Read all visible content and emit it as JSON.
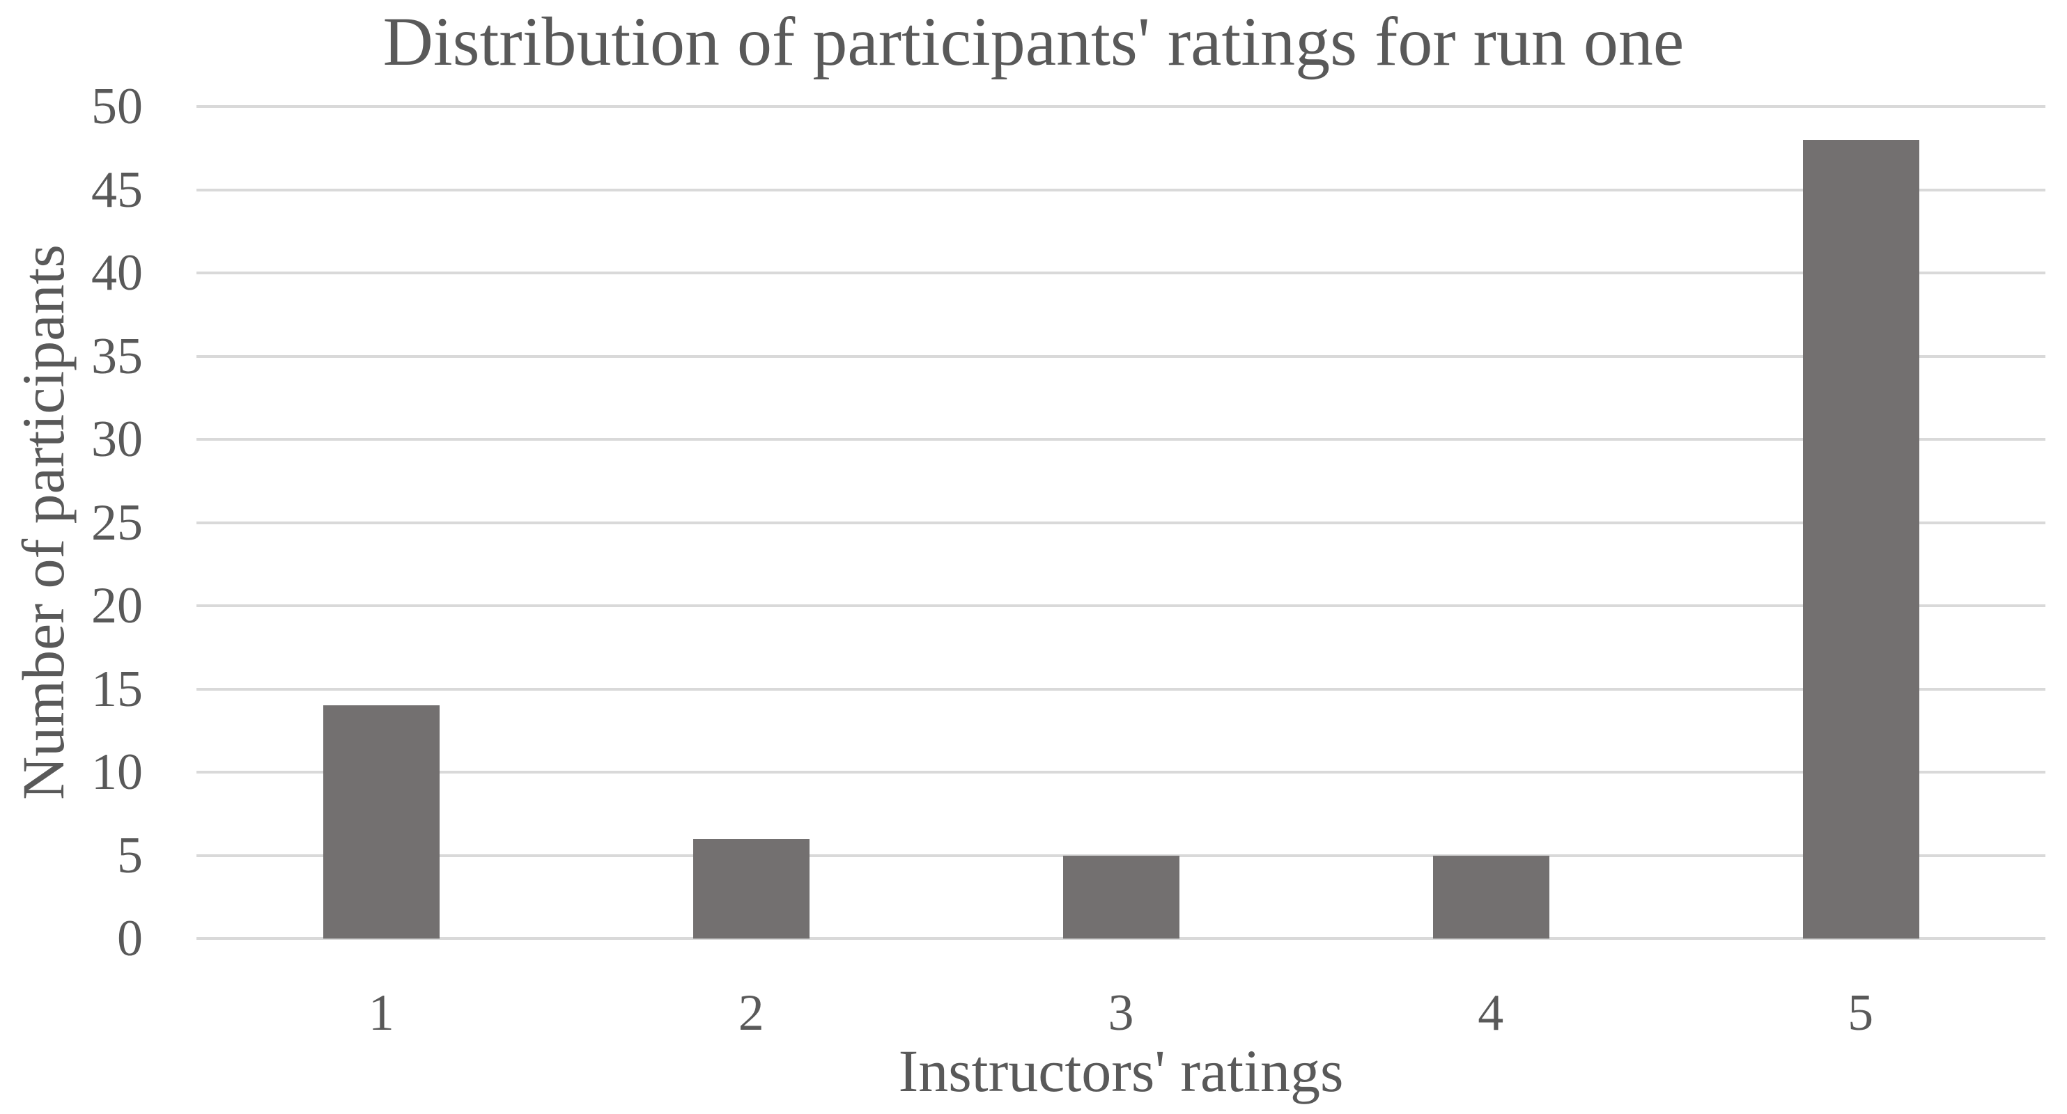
{
  "chart_data": {
    "type": "bar",
    "title": "Distribution of participants' ratings for run one",
    "xlabel": "Instructors' ratings",
    "ylabel": "Number of participants",
    "categories": [
      "1",
      "2",
      "3",
      "4",
      "5"
    ],
    "values": [
      14,
      6,
      5,
      5,
      48
    ],
    "ylim": [
      0,
      50
    ],
    "yticks": [
      0,
      5,
      10,
      15,
      20,
      25,
      30,
      35,
      40,
      45,
      50
    ],
    "grid": "horizontal-only",
    "legend": "none",
    "colors": {
      "bar": "#737070",
      "gridline": "#D9D9D9",
      "text": "#595959",
      "background": "#FFFFFF"
    }
  }
}
